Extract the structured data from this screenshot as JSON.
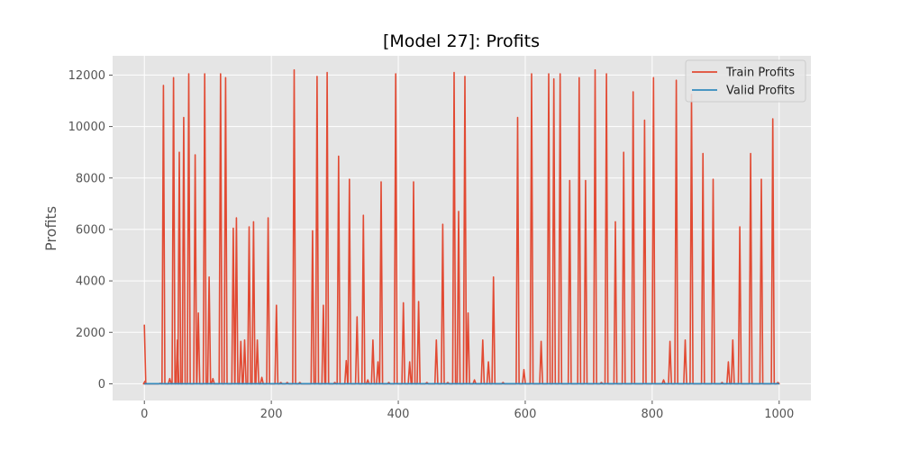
{
  "chart_data": {
    "type": "line",
    "title": "[Model 27]: Profits",
    "xlabel": "",
    "ylabel": "Profits",
    "xlim": [
      -50,
      1050
    ],
    "ylim": [
      -650,
      12750
    ],
    "x_ticks": [
      0,
      200,
      400,
      600,
      800,
      1000
    ],
    "y_ticks": [
      0,
      2000,
      4000,
      6000,
      8000,
      10000,
      12000
    ],
    "grid": true,
    "legend": "top-right",
    "series": [
      {
        "name": "Train Profits",
        "color": "#E24A33",
        "baseline": 0,
        "points": [
          [
            0,
            2300
          ],
          [
            1,
            100
          ],
          [
            25,
            20
          ],
          [
            30,
            11600
          ],
          [
            40,
            200
          ],
          [
            46,
            11900
          ],
          [
            52,
            1700
          ],
          [
            55,
            9000
          ],
          [
            62,
            10350
          ],
          [
            70,
            12050
          ],
          [
            80,
            8900
          ],
          [
            85,
            2750
          ],
          [
            95,
            12050
          ],
          [
            102,
            4150
          ],
          [
            108,
            200
          ],
          [
            120,
            12050
          ],
          [
            128,
            11900
          ],
          [
            140,
            6050
          ],
          [
            145,
            6450
          ],
          [
            152,
            1650
          ],
          [
            158,
            1700
          ],
          [
            165,
            6100
          ],
          [
            172,
            6300
          ],
          [
            178,
            1700
          ],
          [
            185,
            250
          ],
          [
            195,
            6450
          ],
          [
            208,
            3050
          ],
          [
            215,
            50
          ],
          [
            225,
            50
          ],
          [
            236,
            12200
          ],
          [
            245,
            50
          ],
          [
            265,
            5950
          ],
          [
            272,
            11950
          ],
          [
            282,
            3050
          ],
          [
            288,
            12100
          ],
          [
            300,
            50
          ],
          [
            306,
            8850
          ],
          [
            318,
            900
          ],
          [
            323,
            7950
          ],
          [
            335,
            2600
          ],
          [
            345,
            6550
          ],
          [
            352,
            150
          ],
          [
            360,
            1700
          ],
          [
            368,
            850
          ],
          [
            373,
            7850
          ],
          [
            385,
            50
          ],
          [
            396,
            12050
          ],
          [
            408,
            3150
          ],
          [
            418,
            850
          ],
          [
            424,
            7850
          ],
          [
            432,
            3200
          ],
          [
            445,
            50
          ],
          [
            460,
            1700
          ],
          [
            470,
            6200
          ],
          [
            478,
            50
          ],
          [
            488,
            12100
          ],
          [
            495,
            6700
          ],
          [
            505,
            11950
          ],
          [
            510,
            2750
          ],
          [
            520,
            150
          ],
          [
            533,
            1700
          ],
          [
            542,
            850
          ],
          [
            550,
            4150
          ],
          [
            565,
            50
          ],
          [
            588,
            10350
          ],
          [
            598,
            550
          ],
          [
            610,
            12050
          ],
          [
            625,
            1650
          ],
          [
            637,
            12050
          ],
          [
            645,
            11850
          ],
          [
            655,
            12050
          ],
          [
            670,
            7900
          ],
          [
            685,
            11900
          ],
          [
            695,
            7900
          ],
          [
            710,
            12200
          ],
          [
            720,
            50
          ],
          [
            728,
            12050
          ],
          [
            742,
            6300
          ],
          [
            755,
            9000
          ],
          [
            770,
            11350
          ],
          [
            788,
            10250
          ],
          [
            802,
            11900
          ],
          [
            818,
            150
          ],
          [
            828,
            1650
          ],
          [
            838,
            11800
          ],
          [
            852,
            1700
          ],
          [
            862,
            11250
          ],
          [
            880,
            8950
          ],
          [
            896,
            7950
          ],
          [
            910,
            50
          ],
          [
            920,
            850
          ],
          [
            927,
            1700
          ],
          [
            938,
            6100
          ],
          [
            955,
            8950
          ],
          [
            972,
            7950
          ],
          [
            990,
            10300
          ],
          [
            998,
            50
          ]
        ]
      },
      {
        "name": "Valid Profits",
        "color": "#348ABD",
        "x": [
          0,
          1000
        ],
        "y": [
          0,
          0
        ]
      }
    ]
  }
}
